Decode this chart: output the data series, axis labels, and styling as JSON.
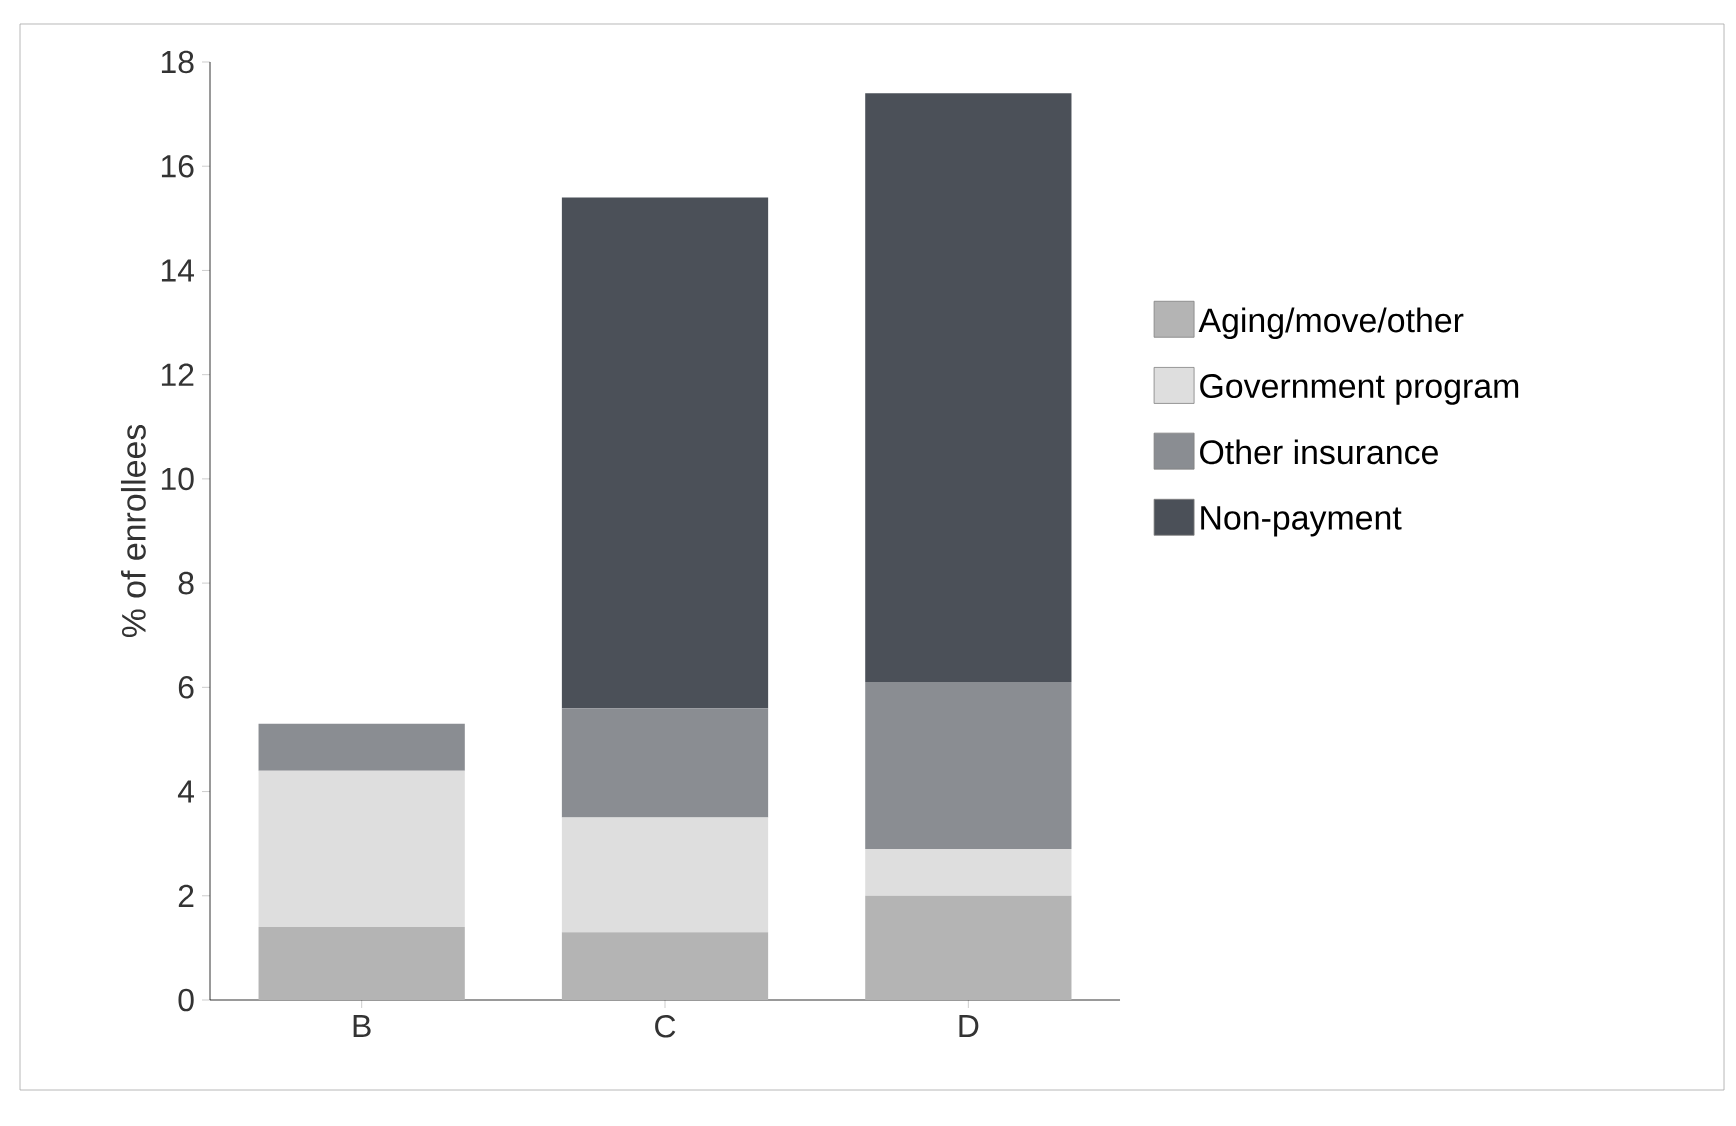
{
  "chart_data": {
    "type": "bar",
    "stacked": true,
    "ylabel": "% of enrollees",
    "categories": [
      "B",
      "C",
      "D"
    ],
    "ylim": [
      0,
      18
    ],
    "yticks": [
      0,
      2,
      4,
      6,
      8,
      10,
      12,
      14,
      16,
      18
    ],
    "legend": "right",
    "series": [
      {
        "name": "Aging/move/other",
        "color": "#b4b4b4",
        "values": [
          1.4,
          1.3,
          2.0
        ]
      },
      {
        "name": "Government program",
        "color": "#dedede",
        "values": [
          3.0,
          2.2,
          0.9
        ]
      },
      {
        "name": "Other insurance",
        "color": "#8a8d92",
        "values": [
          0.9,
          2.1,
          3.2
        ]
      },
      {
        "name": "Non-payment",
        "color": "#4b5058",
        "values": [
          0,
          9.8,
          11.3
        ]
      }
    ]
  }
}
